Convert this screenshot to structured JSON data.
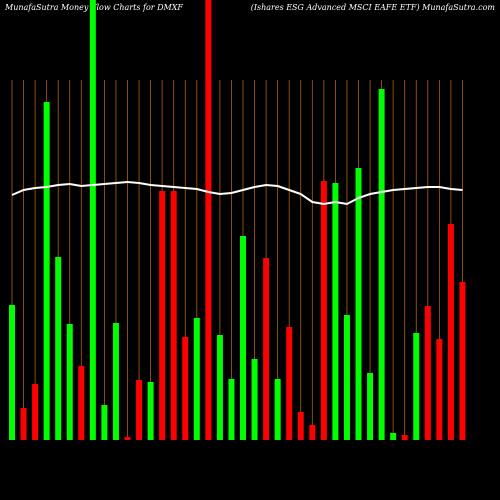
{
  "chart_data": {
    "type": "bar",
    "title": "MunafaSutra  Money Flow  Charts for DMXF",
    "subtitle": "(Ishares ESG Advanced MSCI EAFE ETF) MunafaSutra.com",
    "categories": [
      null,
      null,
      null,
      null,
      null,
      null,
      null,
      null,
      null,
      null,
      null,
      null,
      null,
      null,
      null,
      null,
      null,
      null,
      null,
      null,
      null,
      null,
      null,
      null,
      null,
      null,
      null,
      null,
      null,
      null,
      null,
      null,
      null,
      null,
      null,
      null,
      null,
      null,
      null,
      null
    ],
    "values": [
      135,
      32,
      56,
      338,
      183,
      116,
      74,
      460,
      35,
      117,
      3,
      60,
      58,
      249,
      249,
      103,
      122,
      460,
      105,
      61,
      204,
      81,
      182,
      61,
      113,
      28,
      15,
      259,
      257,
      125,
      272,
      67,
      351,
      7,
      5,
      107,
      134,
      101,
      216,
      158
    ],
    "colors": [
      "#00ff00",
      "#ff0000",
      "#ff0000",
      "#00ff00",
      "#00ff00",
      "#00ff00",
      "#ff0000",
      "#00ff00",
      "#00ff00",
      "#00ff00",
      "#ff0000",
      "#ff0000",
      "#00ff00",
      "#ff0000",
      "#ff0000",
      "#ff0000",
      "#00ff00",
      "#ff0000",
      "#00ff00",
      "#00ff00",
      "#00ff00",
      "#00ff00",
      "#ff0000",
      "#00ff00",
      "#ff0000",
      "#ff0000",
      "#ff0000",
      "#ff0000",
      "#00ff00",
      "#00ff00",
      "#00ff00",
      "#00ff00",
      "#00ff00",
      "#00ff00",
      "#ff0000",
      "#00ff00",
      "#ff0000",
      "#ff0000",
      "#ff0000",
      "#ff0000"
    ],
    "line_values": [
      245,
      250,
      252,
      253,
      255,
      256,
      254,
      255,
      256,
      257,
      258,
      257,
      255,
      254,
      253,
      252,
      251,
      248,
      246,
      247,
      250,
      253,
      255,
      254,
      250,
      246,
      238,
      236,
      238,
      236,
      242,
      246,
      248,
      250,
      251,
      252,
      253,
      253,
      251,
      250
    ],
    "line_color": "#ffffff",
    "grid_color": "#b06010",
    "background": "#000000"
  }
}
